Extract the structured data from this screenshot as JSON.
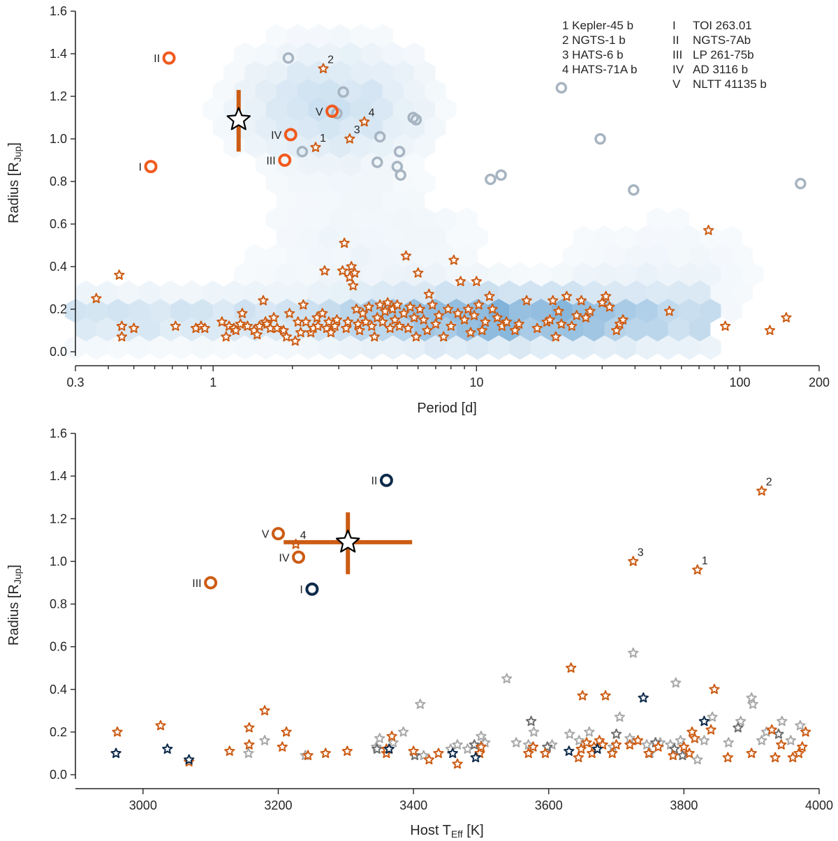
{
  "colors": {
    "orange": "#cc5c14",
    "bright_orange": "#f05a1e",
    "navy": "#0d2a4a",
    "grey_ring": "#a7b4c1",
    "grey_star": "#a8a8a8",
    "dark_grey_star": "#6e6e6e",
    "axis": "#262626",
    "hex_base": "#5c9ccf"
  },
  "legend_numbered": [
    {
      "num": "1",
      "name": "Kepler-45 b",
      "text": "1 Kepler-45 b"
    },
    {
      "num": "2",
      "name": "NGTS-1 b",
      "text": "2 NGTS-1 b"
    },
    {
      "num": "3",
      "name": "HATS-6 b",
      "text": "3 HATS-6 b"
    },
    {
      "num": "4",
      "name": "HATS-71A b",
      "text": "4 HATS-71A b"
    }
  ],
  "legend_roman": [
    {
      "num": "I",
      "name": "TOI 263.01"
    },
    {
      "num": "II",
      "name": "NGTS-7Ab"
    },
    {
      "num": "III",
      "name": "LP 261-75b"
    },
    {
      "num": "IV",
      "name": "AD 3116 b"
    },
    {
      "num": "V",
      "name": "NLTT 41135 b"
    }
  ],
  "chart_data": [
    {
      "type": "scatter",
      "title": "",
      "xlabel": "Period [d]",
      "ylabel": "Radius [R",
      "ylabel_sub": "Jup",
      "ylabel_end": "]",
      "xscale": "log",
      "xlim": [
        0.3,
        200
      ],
      "ylim": [
        0.0,
        1.6
      ],
      "xticks": [
        0.3,
        1,
        10,
        100,
        200
      ],
      "xtick_labels": [
        "0.3",
        "1",
        "10",
        "100",
        "200"
      ],
      "yticks": [
        0.0,
        0.2,
        0.4,
        0.6,
        0.8,
        1.0,
        1.2,
        1.4,
        1.6
      ],
      "ytick_labels": [
        "0.0",
        "0.2",
        "0.4",
        "0.6",
        "0.8",
        "1.0",
        "1.2",
        "1.4",
        "1.6"
      ],
      "legend_position": "top-right",
      "background_hexbin": {
        "description": "density of known planets",
        "dense_region": {
          "period_range": [
            1.3,
            60
          ],
          "radius_range": [
            0.05,
            0.35
          ]
        },
        "giant_region": {
          "period_range": [
            2,
            30
          ],
          "radius_range": [
            0.8,
            1.5
          ]
        }
      },
      "target": {
        "name": "star",
        "period": 1.25,
        "radius": 1.09,
        "radius_err": [
          0.15,
          0.14
        ]
      },
      "rings_orange": [
        {
          "label": "I",
          "period": 0.58,
          "radius": 0.87
        },
        {
          "label": "II",
          "period": 0.68,
          "radius": 1.38
        },
        {
          "label": "III",
          "period": 1.87,
          "radius": 0.9
        },
        {
          "label": "IV",
          "period": 1.97,
          "radius": 1.02
        },
        {
          "label": "V",
          "period": 2.83,
          "radius": 1.13
        }
      ],
      "rings_grey": [
        {
          "period": 1.93,
          "radius": 1.38
        },
        {
          "period": 2.18,
          "radius": 0.94
        },
        {
          "period": 2.95,
          "radius": 1.12
        },
        {
          "period": 3.12,
          "radius": 1.22
        },
        {
          "period": 4.2,
          "radius": 0.89
        },
        {
          "period": 4.3,
          "radius": 1.01
        },
        {
          "period": 5.0,
          "radius": 0.87
        },
        {
          "period": 5.1,
          "radius": 0.94
        },
        {
          "period": 5.15,
          "radius": 0.83
        },
        {
          "period": 5.75,
          "radius": 1.1
        },
        {
          "period": 5.9,
          "radius": 1.09
        },
        {
          "period": 11.3,
          "radius": 0.81
        },
        {
          "period": 12.4,
          "radius": 0.83
        },
        {
          "period": 21.0,
          "radius": 1.24
        },
        {
          "period": 29.5,
          "radius": 1.0
        },
        {
          "period": 39.5,
          "radius": 0.76
        },
        {
          "period": 170.0,
          "radius": 0.79
        }
      ],
      "labeled_stars": [
        {
          "label": "1",
          "period": 2.45,
          "radius": 0.96
        },
        {
          "label": "2",
          "period": 2.62,
          "radius": 1.33
        },
        {
          "label": "3",
          "period": 3.3,
          "radius": 1.0
        },
        {
          "label": "4",
          "period": 3.75,
          "radius": 1.08
        }
      ],
      "stars": [
        [
          0.36,
          0.25
        ],
        [
          0.44,
          0.36
        ],
        [
          0.45,
          0.07
        ],
        [
          0.45,
          0.12
        ],
        [
          0.5,
          0.11
        ],
        [
          0.72,
          0.12
        ],
        [
          0.86,
          0.11
        ],
        [
          0.9,
          0.12
        ],
        [
          0.93,
          0.11
        ],
        [
          1.08,
          0.14
        ],
        [
          1.12,
          0.07
        ],
        [
          1.15,
          0.12
        ],
        [
          1.2,
          0.11
        ],
        [
          1.22,
          0.1
        ],
        [
          1.27,
          0.13
        ],
        [
          1.29,
          0.18
        ],
        [
          1.35,
          0.12
        ],
        [
          1.43,
          0.1
        ],
        [
          1.47,
          0.08
        ],
        [
          1.5,
          0.12
        ],
        [
          1.55,
          0.24
        ],
        [
          1.58,
          0.14
        ],
        [
          1.6,
          0.13
        ],
        [
          1.65,
          0.11
        ],
        [
          1.7,
          0.16
        ],
        [
          1.75,
          0.11
        ],
        [
          1.85,
          0.1
        ],
        [
          1.9,
          0.07
        ],
        [
          1.95,
          0.18
        ],
        [
          2.05,
          0.05
        ],
        [
          2.1,
          0.14
        ],
        [
          2.15,
          0.09
        ],
        [
          2.2,
          0.22
        ],
        [
          2.25,
          0.14
        ],
        [
          2.35,
          0.09
        ],
        [
          2.4,
          0.11
        ],
        [
          2.48,
          0.16
        ],
        [
          2.5,
          0.12
        ],
        [
          2.6,
          0.18
        ],
        [
          2.65,
          0.38
        ],
        [
          2.7,
          0.11
        ],
        [
          2.75,
          0.14
        ],
        [
          2.8,
          0.09
        ],
        [
          2.9,
          0.12
        ],
        [
          2.95,
          0.15
        ],
        [
          3.1,
          0.38
        ],
        [
          3.15,
          0.51
        ],
        [
          3.2,
          0.11
        ],
        [
          3.25,
          0.14
        ],
        [
          3.3,
          0.35
        ],
        [
          3.35,
          0.4
        ],
        [
          3.4,
          0.31
        ],
        [
          3.45,
          0.37
        ],
        [
          3.5,
          0.2
        ],
        [
          3.55,
          0.13
        ],
        [
          3.6,
          0.1
        ],
        [
          3.7,
          0.18
        ],
        [
          3.8,
          0.14
        ],
        [
          3.9,
          0.21
        ],
        [
          4.0,
          0.12
        ],
        [
          4.1,
          0.07
        ],
        [
          4.2,
          0.16
        ],
        [
          4.3,
          0.22
        ],
        [
          4.4,
          0.14
        ],
        [
          4.5,
          0.19
        ],
        [
          4.6,
          0.23
        ],
        [
          4.7,
          0.11
        ],
        [
          4.8,
          0.2
        ],
        [
          4.9,
          0.15
        ],
        [
          5.0,
          0.22
        ],
        [
          5.1,
          0.12
        ],
        [
          5.3,
          0.18
        ],
        [
          5.4,
          0.45
        ],
        [
          5.5,
          0.11
        ],
        [
          5.6,
          0.21
        ],
        [
          5.8,
          0.16
        ],
        [
          5.9,
          0.07
        ],
        [
          6.0,
          0.37
        ],
        [
          6.1,
          0.2
        ],
        [
          6.3,
          0.15
        ],
        [
          6.5,
          0.1
        ],
        [
          6.6,
          0.27
        ],
        [
          6.8,
          0.22
        ],
        [
          7.0,
          0.13
        ],
        [
          7.2,
          0.17
        ],
        [
          7.5,
          0.07
        ],
        [
          7.8,
          0.2
        ],
        [
          8.0,
          0.12
        ],
        [
          8.2,
          0.43
        ],
        [
          8.5,
          0.18
        ],
        [
          8.7,
          0.33
        ],
        [
          9.0,
          0.15
        ],
        [
          9.3,
          0.2
        ],
        [
          9.5,
          0.09
        ],
        [
          9.8,
          0.17
        ],
        [
          10.0,
          0.33
        ],
        [
          10.2,
          0.22
        ],
        [
          10.5,
          0.1
        ],
        [
          10.8,
          0.14
        ],
        [
          11.2,
          0.26
        ],
        [
          11.5,
          0.2
        ],
        [
          12.0,
          0.16
        ],
        [
          12.5,
          0.12
        ],
        [
          13.0,
          0.14
        ],
        [
          14.0,
          0.1
        ],
        [
          14.5,
          0.13
        ],
        [
          15.5,
          0.24
        ],
        [
          17.0,
          0.11
        ],
        [
          18.5,
          0.14
        ],
        [
          19.0,
          0.15
        ],
        [
          19.5,
          0.24
        ],
        [
          20.0,
          0.07
        ],
        [
          20.5,
          0.19
        ],
        [
          21.0,
          0.13
        ],
        [
          22.0,
          0.26
        ],
        [
          23.0,
          0.12
        ],
        [
          24.0,
          0.17
        ],
        [
          25.0,
          0.24
        ],
        [
          26.0,
          0.16
        ],
        [
          27.0,
          0.19
        ],
        [
          30.0,
          0.23
        ],
        [
          31.0,
          0.26
        ],
        [
          32.0,
          0.21
        ],
        [
          34.0,
          0.1
        ],
        [
          35.0,
          0.13
        ],
        [
          36.0,
          0.15
        ],
        [
          54.0,
          0.19
        ],
        [
          76.0,
          0.57
        ],
        [
          88.0,
          0.12
        ],
        [
          130.0,
          0.1
        ],
        [
          150.0,
          0.16
        ]
      ]
    },
    {
      "type": "scatter",
      "title": "",
      "xlabel": "Host T",
      "xlabel_sub": "Eff",
      "xlabel_end": " [K]",
      "ylabel": "Radius [R",
      "ylabel_sub": "Jup",
      "ylabel_end": "]",
      "xlim": [
        2900,
        4000
      ],
      "ylim": [
        0.0,
        1.6
      ],
      "xticks": [
        3000,
        3200,
        3400,
        3600,
        3800,
        4000
      ],
      "xtick_labels": [
        "3000",
        "3200",
        "3400",
        "3600",
        "3800",
        "4000"
      ],
      "yticks": [
        0.0,
        0.2,
        0.4,
        0.6,
        0.8,
        1.0,
        1.2,
        1.4,
        1.6
      ],
      "ytick_labels": [
        "0.0",
        "0.2",
        "0.4",
        "0.6",
        "0.8",
        "1.0",
        "1.2",
        "1.4",
        "1.6"
      ],
      "target": {
        "name": "star",
        "teff": 3303,
        "radius": 1.09,
        "teff_err": [
          95,
          95
        ],
        "radius_err": [
          0.15,
          0.14
        ]
      },
      "rings_orange": [
        {
          "label": "III",
          "teff": 3100,
          "radius": 0.9
        },
        {
          "label": "IV",
          "teff": 3230,
          "radius": 1.02
        },
        {
          "label": "V",
          "teff": 3200,
          "radius": 1.13
        }
      ],
      "rings_navy": [
        {
          "label": "I",
          "teff": 3250,
          "radius": 0.87
        },
        {
          "label": "II",
          "teff": 3360,
          "radius": 1.38
        }
      ],
      "labeled_stars": [
        {
          "label": "1",
          "teff": 3820,
          "radius": 0.96
        },
        {
          "label": "2",
          "teff": 3915,
          "radius": 1.33
        },
        {
          "label": "3",
          "teff": 3725,
          "radius": 1.0
        },
        {
          "label": "4",
          "teff": 3226,
          "radius": 1.08
        }
      ],
      "stars_orange": [
        [
          2962,
          0.2
        ],
        [
          3026,
          0.23
        ],
        [
          3068,
          0.06
        ],
        [
          3128,
          0.11
        ],
        [
          3157,
          0.14
        ],
        [
          3157,
          0.22
        ],
        [
          3180,
          0.3
        ],
        [
          3206,
          0.13
        ],
        [
          3212,
          0.2
        ],
        [
          3244,
          0.09
        ],
        [
          3270,
          0.1
        ],
        [
          3302,
          0.11
        ],
        [
          3360,
          0.1
        ],
        [
          3360,
          0.12
        ],
        [
          3368,
          0.18
        ],
        [
          3400,
          0.11
        ],
        [
          3423,
          0.07
        ],
        [
          3437,
          0.1
        ],
        [
          3465,
          0.05
        ],
        [
          3498,
          0.1
        ],
        [
          3500,
          0.13
        ],
        [
          3570,
          0.1
        ],
        [
          3577,
          0.13
        ],
        [
          3595,
          0.1
        ],
        [
          3633,
          0.5
        ],
        [
          3644,
          0.08
        ],
        [
          3648,
          0.12
        ],
        [
          3650,
          0.37
        ],
        [
          3656,
          0.15
        ],
        [
          3664,
          0.1
        ],
        [
          3667,
          0.13
        ],
        [
          3675,
          0.16
        ],
        [
          3680,
          0.14
        ],
        [
          3684,
          0.37
        ],
        [
          3694,
          0.1
        ],
        [
          3700,
          0.14
        ],
        [
          3720,
          0.14
        ],
        [
          3732,
          0.16
        ],
        [
          3748,
          0.1
        ],
        [
          3762,
          0.13
        ],
        [
          3784,
          0.09
        ],
        [
          3800,
          0.13
        ],
        [
          3808,
          0.1
        ],
        [
          3812,
          0.2
        ],
        [
          3816,
          0.17
        ],
        [
          3840,
          0.21
        ],
        [
          3845,
          0.4
        ],
        [
          3865,
          0.08
        ],
        [
          3900,
          0.1
        ],
        [
          3930,
          0.21
        ],
        [
          3935,
          0.08
        ],
        [
          3944,
          0.14
        ],
        [
          3961,
          0.08
        ],
        [
          3970,
          0.1
        ],
        [
          3975,
          0.13
        ],
        [
          3980,
          0.2
        ]
      ],
      "stars_grey": [
        [
          3156,
          0.1
        ],
        [
          3180,
          0.16
        ],
        [
          3240,
          0.09
        ],
        [
          3345,
          0.13
        ],
        [
          3350,
          0.17
        ],
        [
          3370,
          0.15
        ],
        [
          3385,
          0.2
        ],
        [
          3410,
          0.33
        ],
        [
          3415,
          0.09
        ],
        [
          3455,
          0.12
        ],
        [
          3465,
          0.14
        ],
        [
          3480,
          0.12
        ],
        [
          3500,
          0.18
        ],
        [
          3506,
          0.15
        ],
        [
          3538,
          0.45
        ],
        [
          3552,
          0.15
        ],
        [
          3570,
          0.14
        ],
        [
          3578,
          0.2
        ],
        [
          3605,
          0.14
        ],
        [
          3631,
          0.19
        ],
        [
          3645,
          0.16
        ],
        [
          3660,
          0.2
        ],
        [
          3695,
          0.13
        ],
        [
          3705,
          0.27
        ],
        [
          3720,
          0.17
        ],
        [
          3725,
          0.57
        ],
        [
          3745,
          0.14
        ],
        [
          3750,
          0.1
        ],
        [
          3765,
          0.15
        ],
        [
          3780,
          0.14
        ],
        [
          3788,
          0.43
        ],
        [
          3795,
          0.16
        ],
        [
          3820,
          0.07
        ],
        [
          3830,
          0.16
        ],
        [
          3842,
          0.27
        ],
        [
          3866,
          0.15
        ],
        [
          3884,
          0.25
        ],
        [
          3900,
          0.36
        ],
        [
          3902,
          0.33
        ],
        [
          3915,
          0.16
        ],
        [
          3922,
          0.2
        ],
        [
          3945,
          0.25
        ],
        [
          3958,
          0.16
        ],
        [
          3972,
          0.23
        ]
      ],
      "stars_dark_grey": [
        [
          3346,
          0.12
        ],
        [
          3402,
          0.09
        ],
        [
          3490,
          0.14
        ],
        [
          3574,
          0.25
        ],
        [
          3598,
          0.13
        ],
        [
          3700,
          0.19
        ],
        [
          3758,
          0.15
        ],
        [
          3786,
          0.12
        ],
        [
          3798,
          0.09
        ],
        [
          3880,
          0.22
        ],
        [
          3940,
          0.19
        ]
      ],
      "stars_navy": [
        [
          2960,
          0.1
        ],
        [
          3036,
          0.12
        ],
        [
          3068,
          0.07
        ],
        [
          3364,
          0.12
        ],
        [
          3458,
          0.1
        ],
        [
          3492,
          0.08
        ],
        [
          3630,
          0.11
        ],
        [
          3672,
          0.12
        ],
        [
          3740,
          0.36
        ],
        [
          3830,
          0.25
        ]
      ]
    }
  ]
}
